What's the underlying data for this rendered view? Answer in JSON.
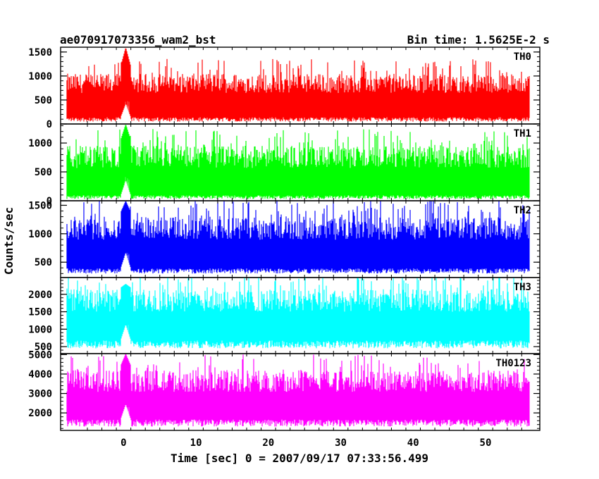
{
  "chart_data": {
    "type": "line",
    "title_left": "ae070917073356_wam2_bst",
    "title_right": "Bin time: 1.5625E-2 s",
    "xlabel": "Time [sec] 0 = 2007/09/17 07:33:56.499",
    "ylabel": "Counts/sec",
    "xlim": [
      -8.7,
      57.5
    ],
    "x_ticks": [
      0,
      10,
      20,
      30,
      40,
      50
    ],
    "x_data_range": [
      -7.8,
      56.0
    ],
    "panels": [
      {
        "name": "TH0",
        "color": "#ff0000",
        "ylim": [
          0,
          1600
        ],
        "y_ticks": [
          0,
          500,
          1000,
          1500
        ],
        "baseline_range": [
          150,
          1050
        ],
        "floor": 50,
        "burst_time": 0.3,
        "burst_peak": 1600
      },
      {
        "name": "TH1",
        "color": "#00ff00",
        "ylim": [
          0,
          1330
        ],
        "y_ticks": [
          0,
          500,
          1000
        ],
        "baseline_range": [
          100,
          950
        ],
        "floor": 30,
        "burst_time": 0.3,
        "burst_peak": 1330
      },
      {
        "name": "TH2",
        "color": "#0000ff",
        "ylim": [
          230,
          1580
        ],
        "y_ticks": [
          500,
          1000,
          1500
        ],
        "baseline_range": [
          400,
          1300
        ],
        "floor": 300,
        "burst_time": 0.3,
        "burst_peak": 1580
      },
      {
        "name": "TH3",
        "color": "#00ffff",
        "ylim": [
          300,
          2480
        ],
        "y_ticks": [
          500,
          1000,
          1500,
          2000
        ],
        "baseline_range": [
          700,
          2150
        ],
        "floor": 450,
        "burst_time": 0.3,
        "burst_peak": 2300
      },
      {
        "name": "TH0123",
        "color": "#ff00ff",
        "ylim": [
          1100,
          5050
        ],
        "y_ticks": [
          2000,
          3000,
          4000,
          5000
        ],
        "baseline_range": [
          1700,
          4200
        ],
        "floor": 1300,
        "burst_time": 0.3,
        "burst_peak": 5050
      }
    ]
  }
}
